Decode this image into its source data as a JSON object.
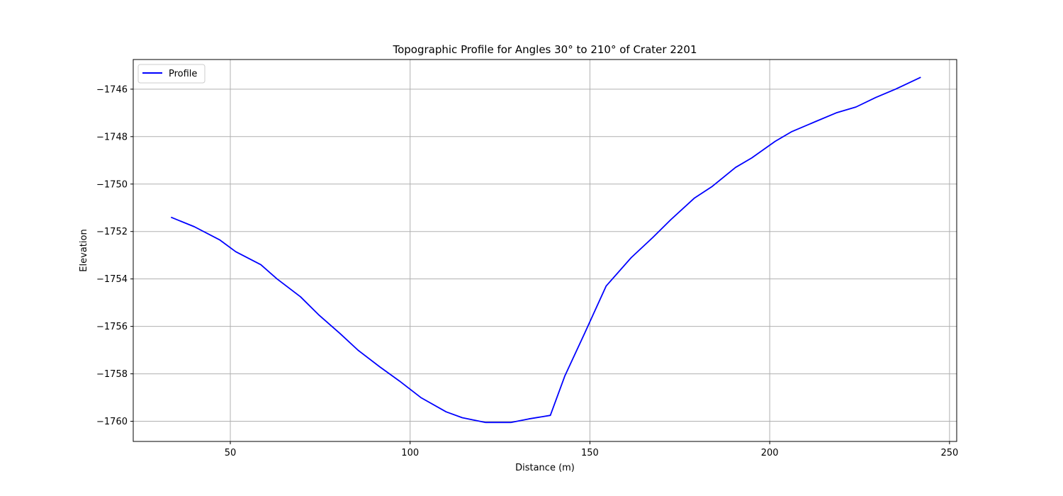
{
  "chart_data": {
    "type": "line",
    "title": "Topographic Profile for Angles 30° to 210° of Crater 2201",
    "xlabel": "Distance (m)",
    "ylabel": "Elevation",
    "xlim": [
      23,
      252
    ],
    "ylim": [
      -1760.85,
      -1744.75
    ],
    "xticks": [
      50,
      100,
      150,
      200,
      250
    ],
    "xtick_labels": [
      "50",
      "100",
      "150",
      "200",
      "250"
    ],
    "yticks": [
      -1760,
      -1758,
      -1756,
      -1754,
      -1752,
      -1750,
      -1748,
      -1746
    ],
    "ytick_labels": [
      "−1760",
      "−1758",
      "−1756",
      "−1754",
      "−1752",
      "−1750",
      "−1748",
      "−1746"
    ],
    "grid": true,
    "legend": {
      "position": "top-left"
    },
    "colors": {
      "Profile": "#0000ff"
    },
    "series": [
      {
        "name": "Profile",
        "x": [
          33.5,
          40,
          47,
          51.5,
          58.5,
          63,
          69.5,
          74.5,
          80.5,
          85.5,
          91.5,
          97,
          103,
          110,
          114.5,
          121,
          128,
          133,
          139,
          143,
          148.5,
          154.5,
          161.5,
          167.5,
          172.5,
          179,
          184,
          190.5,
          195,
          201.5,
          206,
          213,
          218.5,
          224,
          229.5,
          235,
          242
        ],
        "y": [
          -1751.4,
          -1751.8,
          -1752.35,
          -1752.85,
          -1753.4,
          -1754.0,
          -1754.75,
          -1755.5,
          -1756.3,
          -1757.0,
          -1757.7,
          -1758.3,
          -1759.0,
          -1759.6,
          -1759.85,
          -1760.05,
          -1760.05,
          -1759.9,
          -1759.75,
          -1758.1,
          -1756.3,
          -1754.3,
          -1753.1,
          -1752.25,
          -1751.5,
          -1750.6,
          -1750.1,
          -1749.3,
          -1748.9,
          -1748.2,
          -1747.8,
          -1747.35,
          -1747.0,
          -1746.75,
          -1746.35,
          -1746.0,
          -1745.5
        ]
      }
    ]
  }
}
